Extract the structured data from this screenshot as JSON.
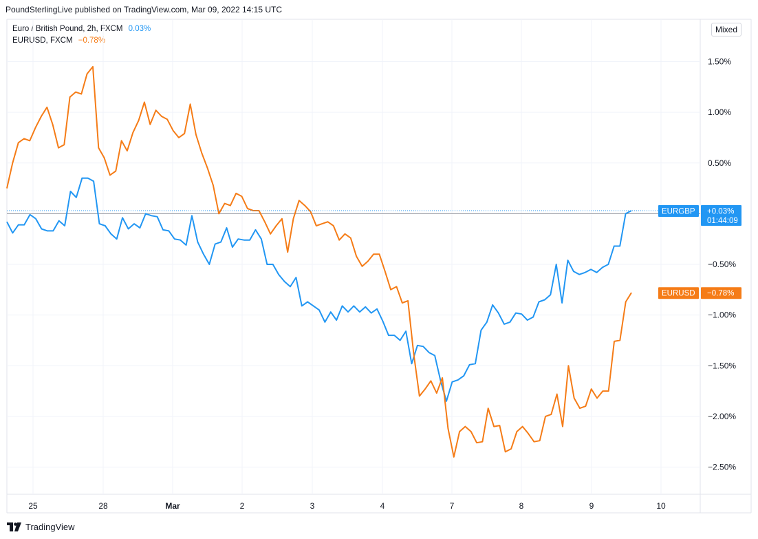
{
  "header": {
    "text": "PoundSterlingLive published on TradingView.com, Mar 09, 2022 14:15 UTC"
  },
  "legend": [
    {
      "name": "Euro / British Pound, 2h, FXCM",
      "change": "0.03%",
      "color": "#2196f3"
    },
    {
      "name": "EURUSD, FXCM",
      "change": "−0.78%",
      "color": "#f57c17"
    }
  ],
  "scale_mode_label": "Mixed",
  "footer": {
    "brand": "TradingView",
    "icon": "tradingview-logo-icon"
  },
  "chart_data": {
    "type": "line",
    "x_ticks": [
      "25",
      "28",
      "Mar",
      "2",
      "3",
      "4",
      "7",
      "8",
      "9",
      "10"
    ],
    "y_ticks": [
      "1.50%",
      "1.00%",
      "0.50%",
      "−0.50%",
      "−1.00%",
      "−1.50%",
      "−2.00%",
      "−2.50%"
    ],
    "y_tick_values": [
      1.5,
      1.0,
      0.5,
      -0.5,
      -1.0,
      -1.5,
      -2.0,
      -2.5
    ],
    "ylim": [
      -2.75,
      1.9
    ],
    "x_range": [
      24.6,
      10.6
    ],
    "grid": true,
    "series": [
      {
        "name": "EURGBP",
        "color": "#2196f3",
        "end_label": "EURGBP",
        "end_value": "+0.03%",
        "countdown": "01:44:09",
        "values": [
          -0.08,
          -0.19,
          -0.11,
          -0.11,
          -0.01,
          -0.05,
          -0.15,
          -0.17,
          -0.17,
          -0.07,
          -0.12,
          0.22,
          0.16,
          0.35,
          0.35,
          0.32,
          -0.1,
          -0.12,
          -0.2,
          -0.25,
          -0.04,
          -0.15,
          -0.1,
          -0.14,
          0.0,
          -0.02,
          -0.03,
          -0.16,
          -0.17,
          -0.25,
          -0.26,
          -0.31,
          -0.02,
          -0.28,
          -0.4,
          -0.5,
          -0.3,
          -0.28,
          -0.14,
          -0.33,
          -0.25,
          -0.26,
          -0.26,
          -0.16,
          -0.25,
          -0.5,
          -0.5,
          -0.6,
          -0.67,
          -0.72,
          -0.63,
          -0.91,
          -0.87,
          -0.91,
          -0.95,
          -1.07,
          -0.97,
          -1.05,
          -0.91,
          -0.97,
          -0.91,
          -0.97,
          -0.92,
          -0.98,
          -0.94,
          -1.06,
          -1.2,
          -1.2,
          -1.25,
          -1.16,
          -1.48,
          -1.3,
          -1.31,
          -1.37,
          -1.4,
          -1.65,
          -1.85,
          -1.66,
          -1.64,
          -1.6,
          -1.49,
          -1.48,
          -1.15,
          -1.07,
          -0.9,
          -0.98,
          -1.09,
          -1.07,
          -0.98,
          -0.99,
          -1.05,
          -1.02,
          -0.87,
          -0.85,
          -0.8,
          -0.5,
          -0.88,
          -0.46,
          -0.57,
          -0.6,
          -0.58,
          -0.55,
          -0.58,
          -0.53,
          -0.5,
          -0.32,
          -0.32,
          0.0,
          0.03
        ]
      },
      {
        "name": "EURUSD",
        "color": "#f57c17",
        "end_label": "EURUSD",
        "end_value": "−0.78%",
        "values": [
          0.25,
          0.5,
          0.7,
          0.74,
          0.72,
          0.85,
          0.96,
          1.05,
          0.88,
          0.65,
          0.68,
          1.15,
          1.2,
          1.18,
          1.38,
          1.45,
          0.65,
          0.55,
          0.38,
          0.42,
          0.72,
          0.62,
          0.8,
          0.92,
          1.1,
          0.88,
          1.02,
          0.96,
          0.93,
          0.82,
          0.75,
          0.79,
          1.08,
          0.78,
          0.6,
          0.45,
          0.28,
          0.0,
          0.1,
          0.08,
          0.2,
          0.17,
          0.05,
          0.03,
          0.03,
          -0.08,
          -0.2,
          -0.12,
          -0.05,
          -0.38,
          -0.05,
          0.13,
          0.08,
          0.02,
          -0.12,
          -0.1,
          -0.08,
          -0.12,
          -0.26,
          -0.2,
          -0.24,
          -0.42,
          -0.52,
          -0.47,
          -0.4,
          -0.4,
          -0.57,
          -0.75,
          -0.72,
          -0.88,
          -0.86,
          -1.38,
          -1.8,
          -1.73,
          -1.65,
          -1.77,
          -1.62,
          -2.12,
          -2.4,
          -2.15,
          -2.1,
          -2.15,
          -2.26,
          -2.25,
          -1.92,
          -2.1,
          -2.09,
          -2.35,
          -2.32,
          -2.15,
          -2.1,
          -2.17,
          -2.25,
          -2.24,
          -2.0,
          -1.98,
          -1.78,
          -2.1,
          -1.5,
          -1.82,
          -1.92,
          -1.9,
          -1.73,
          -1.82,
          -1.75,
          -1.75,
          -1.26,
          -1.25,
          -0.87,
          -0.78
        ]
      }
    ],
    "baseline": 0.0
  }
}
